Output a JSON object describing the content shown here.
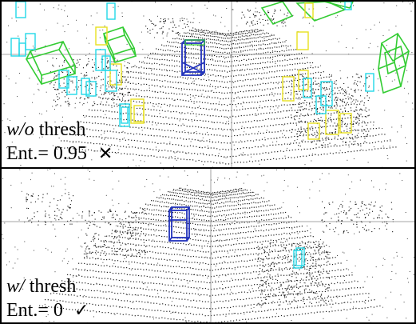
{
  "panels": [
    {
      "method_italic": "w/o",
      "method_rest": " thresh",
      "entropy_text": "Ent.= 0.95",
      "result_mark": "✕",
      "result": "fail",
      "box_colors": [
        "#33ddee",
        "#33cc33",
        "#eeee33",
        "#3344cc"
      ]
    },
    {
      "method_italic": "w/",
      "method_rest": " thresh",
      "entropy_text": "Ent.= 0",
      "result_mark": "✓",
      "result": "pass",
      "box_colors": [
        "#3344cc",
        "#33ddee"
      ]
    }
  ]
}
